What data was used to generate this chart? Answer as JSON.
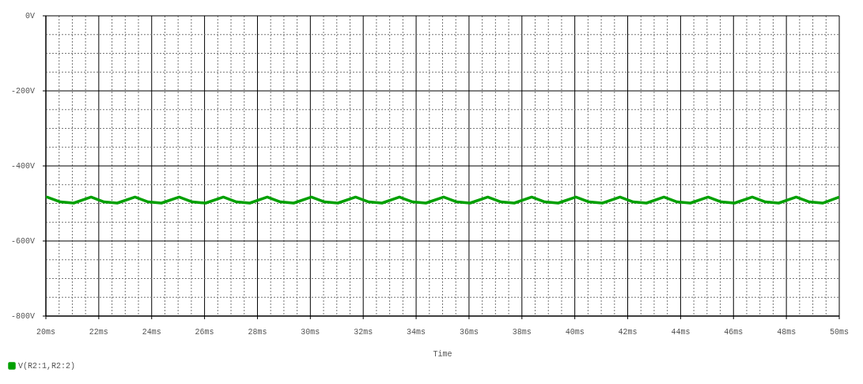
{
  "chart_data": {
    "type": "line",
    "xlabel": "Time",
    "grid": true,
    "legend": "bottom left",
    "marker": "none",
    "line_style": "solid",
    "xlim": [
      20,
      50
    ],
    "ylim": [
      -800,
      0
    ],
    "xticks": [
      {
        "value": 20,
        "label": "20ms"
      },
      {
        "value": 20.5,
        "label": null
      },
      {
        "value": 21,
        "label": null
      },
      {
        "value": 21.5,
        "label": null
      },
      {
        "value": 22,
        "label": "22ms"
      },
      {
        "value": 22.5,
        "label": null
      },
      {
        "value": 23,
        "label": null
      },
      {
        "value": 23.5,
        "label": null
      },
      {
        "value": 24,
        "label": "24ms"
      },
      {
        "value": 24.5,
        "label": null
      },
      {
        "value": 25,
        "label": null
      },
      {
        "value": 25.5,
        "label": null
      },
      {
        "value": 26,
        "label": "26ms"
      },
      {
        "value": 26.5,
        "label": null
      },
      {
        "value": 27,
        "label": null
      },
      {
        "value": 27.5,
        "label": null
      },
      {
        "value": 28,
        "label": "28ms"
      },
      {
        "value": 28.5,
        "label": null
      },
      {
        "value": 29,
        "label": null
      },
      {
        "value": 29.5,
        "label": null
      },
      {
        "value": 30,
        "label": "30ms"
      },
      {
        "value": 30.5,
        "label": null
      },
      {
        "value": 31,
        "label": null
      },
      {
        "value": 31.5,
        "label": null
      },
      {
        "value": 32,
        "label": "32ms"
      },
      {
        "value": 32.5,
        "label": null
      },
      {
        "value": 33,
        "label": null
      },
      {
        "value": 33.5,
        "label": null
      },
      {
        "value": 34,
        "label": "34ms"
      },
      {
        "value": 34.5,
        "label": null
      },
      {
        "value": 35,
        "label": null
      },
      {
        "value": 35.5,
        "label": null
      },
      {
        "value": 36,
        "label": "36ms"
      },
      {
        "value": 36.5,
        "label": null
      },
      {
        "value": 37,
        "label": null
      },
      {
        "value": 37.5,
        "label": null
      },
      {
        "value": 38,
        "label": "38ms"
      },
      {
        "value": 38.5,
        "label": null
      },
      {
        "value": 39,
        "label": null
      },
      {
        "value": 39.5,
        "label": null
      },
      {
        "value": 40,
        "label": "40ms"
      },
      {
        "value": 40.5,
        "label": null
      },
      {
        "value": 41,
        "label": null
      },
      {
        "value": 41.5,
        "label": null
      },
      {
        "value": 42,
        "label": "42ms"
      },
      {
        "value": 42.5,
        "label": null
      },
      {
        "value": 43,
        "label": null
      },
      {
        "value": 43.5,
        "label": null
      },
      {
        "value": 44,
        "label": "44ms"
      },
      {
        "value": 44.5,
        "label": null
      },
      {
        "value": 45,
        "label": null
      },
      {
        "value": 45.5,
        "label": null
      },
      {
        "value": 46,
        "label": "46ms"
      },
      {
        "value": 46.5,
        "label": null
      },
      {
        "value": 47,
        "label": null
      },
      {
        "value": 47.5,
        "label": null
      },
      {
        "value": 48,
        "label": "48ms"
      },
      {
        "value": 48.5,
        "label": null
      },
      {
        "value": 49,
        "label": null
      },
      {
        "value": 49.5,
        "label": null
      },
      {
        "value": 50,
        "label": "50ms"
      }
    ],
    "yticks": [
      {
        "value": 0,
        "label": "0V"
      },
      {
        "value": -50,
        "label": null
      },
      {
        "value": -100,
        "label": null
      },
      {
        "value": -150,
        "label": null
      },
      {
        "value": -200,
        "label": "-200V"
      },
      {
        "value": -250,
        "label": null
      },
      {
        "value": -300,
        "label": null
      },
      {
        "value": -350,
        "label": null
      },
      {
        "value": -400,
        "label": "-400V"
      },
      {
        "value": -450,
        "label": null
      },
      {
        "value": -500,
        "label": null
      },
      {
        "value": -550,
        "label": null
      },
      {
        "value": -600,
        "label": "-600V"
      },
      {
        "value": -650,
        "label": null
      },
      {
        "value": -700,
        "label": null
      },
      {
        "value": -750,
        "label": null
      },
      {
        "value": -800,
        "label": "-800V"
      }
    ],
    "series": [
      {
        "name": "V(R2:1,R2:2)",
        "color": "#00a000",
        "x": [
          20,
          20.04,
          20.55,
          21.05,
          21.71,
          22.2,
          22.7,
          23.37,
          23.87,
          24.37,
          25.04,
          25.54,
          26.04,
          26.71,
          27.21,
          27.71,
          28.37,
          28.87,
          29.37,
          30.04,
          30.54,
          31.04,
          31.71,
          32.21,
          32.71,
          33.37,
          33.87,
          34.37,
          35.04,
          35.54,
          36.04,
          36.71,
          37.21,
          37.71,
          38.37,
          38.87,
          39.37,
          40.04,
          40.54,
          41.04,
          41.71,
          42.21,
          42.71,
          43.37,
          43.87,
          44.37,
          45.04,
          45.54,
          46.04,
          46.71,
          47.21,
          47.71,
          48.37,
          48.87,
          49.37,
          50
        ],
        "values": [
          -484,
          -483,
          -496,
          -499,
          -483,
          -496,
          -499,
          -483,
          -496,
          -499,
          -483,
          -496,
          -499,
          -483,
          -496,
          -499,
          -483,
          -496,
          -499,
          -483,
          -496,
          -499,
          -483,
          -496,
          -499,
          -483,
          -496,
          -499,
          -483,
          -496,
          -499,
          -483,
          -496,
          -499,
          -483,
          -496,
          -499,
          -483,
          -496,
          -499,
          -483,
          -496,
          -499,
          -483,
          -496,
          -499,
          -483,
          -496,
          -499,
          -483,
          -496,
          -499,
          -483,
          -496,
          -499,
          -483
        ]
      }
    ]
  }
}
